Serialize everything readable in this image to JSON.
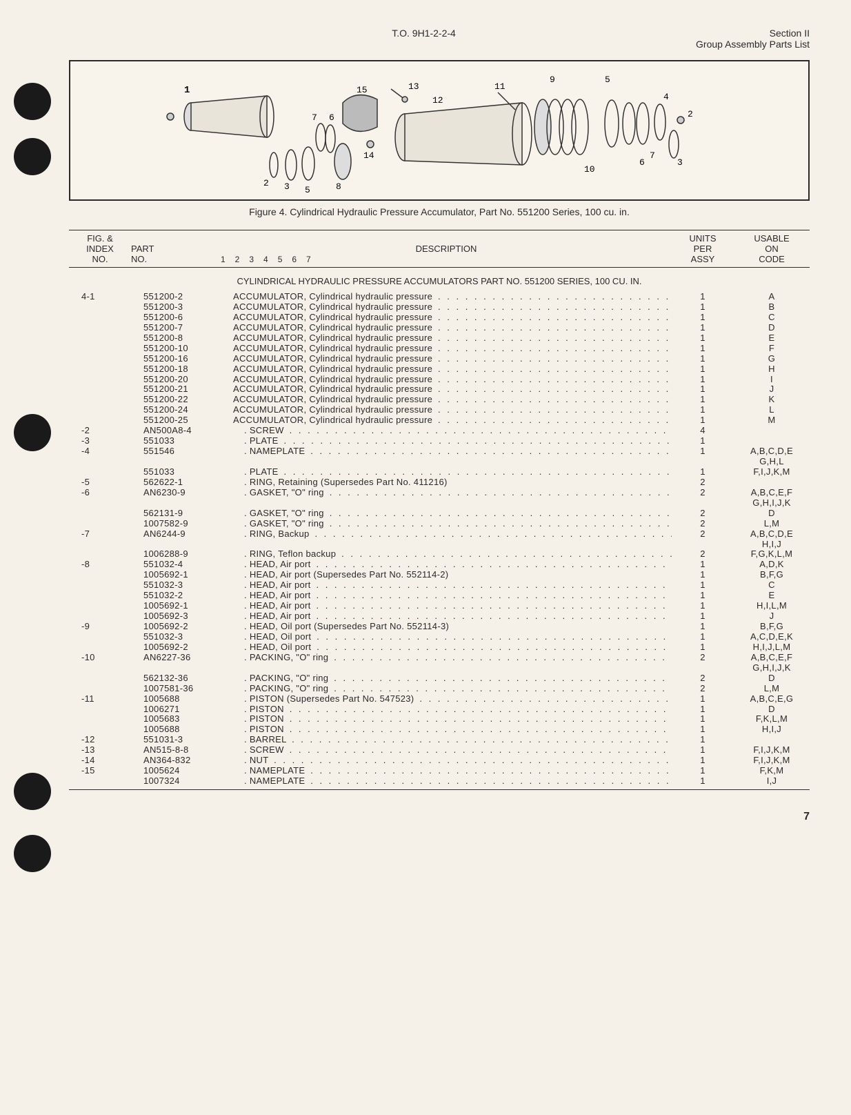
{
  "header": {
    "to_number": "T.O. 9H1-2-2-4",
    "section": "Section II",
    "section_sub": "Group Assembly Parts List"
  },
  "figure": {
    "caption": "Figure 4. Cylindrical Hydraulic Pressure Accumulator, Part No. 551200 Series, 100 cu. in.",
    "callouts": [
      "1",
      "2",
      "3",
      "4",
      "5",
      "6",
      "7",
      "8",
      "9",
      "10",
      "11",
      "12",
      "13",
      "14",
      "15"
    ]
  },
  "table_header": {
    "fig": "FIG. &",
    "fig2": "INDEX",
    "fig3": "NO.",
    "part": "PART",
    "part2": "NO.",
    "desc": "DESCRIPTION",
    "indent_nums": "1  2  3  4  5  6  7",
    "units": "UNITS",
    "units2": "PER",
    "units3": "ASSY",
    "code": "USABLE",
    "code2": "ON",
    "code3": "CODE"
  },
  "section_title": "CYLINDRICAL HYDRAULIC PRESSURE ACCUMULATORS PART NO. 551200 SERIES, 100 CU. IN.",
  "rows": [
    {
      "fig": "4-1",
      "part": "551200-2",
      "indent": 0,
      "desc": "ACCUMULATOR, Cylindrical hydraulic pressure",
      "dots": true,
      "units": "1",
      "code": "A"
    },
    {
      "fig": "",
      "part": "551200-3",
      "indent": 0,
      "desc": "ACCUMULATOR, Cylindrical hydraulic pressure",
      "dots": true,
      "units": "1",
      "code": "B"
    },
    {
      "fig": "",
      "part": "551200-6",
      "indent": 0,
      "desc": "ACCUMULATOR, Cylindrical hydraulic pressure",
      "dots": true,
      "units": "1",
      "code": "C"
    },
    {
      "fig": "",
      "part": "551200-7",
      "indent": 0,
      "desc": "ACCUMULATOR, Cylindrical hydraulic pressure",
      "dots": true,
      "units": "1",
      "code": "D"
    },
    {
      "fig": "",
      "part": "551200-8",
      "indent": 0,
      "desc": "ACCUMULATOR, Cylindrical hydraulic pressure",
      "dots": true,
      "units": "1",
      "code": "E"
    },
    {
      "fig": "",
      "part": "551200-10",
      "indent": 0,
      "desc": "ACCUMULATOR, Cylindrical hydraulic pressure",
      "dots": true,
      "units": "1",
      "code": "F"
    },
    {
      "fig": "",
      "part": "551200-16",
      "indent": 0,
      "desc": "ACCUMULATOR, Cylindrical hydraulic pressure",
      "dots": true,
      "units": "1",
      "code": "G"
    },
    {
      "fig": "",
      "part": "551200-18",
      "indent": 0,
      "desc": "ACCUMULATOR, Cylindrical hydraulic pressure",
      "dots": true,
      "units": "1",
      "code": "H"
    },
    {
      "fig": "",
      "part": "551200-20",
      "indent": 0,
      "desc": "ACCUMULATOR, Cylindrical hydraulic pressure",
      "dots": true,
      "units": "1",
      "code": "I"
    },
    {
      "fig": "",
      "part": "551200-21",
      "indent": 0,
      "desc": "ACCUMULATOR, Cylindrical hydraulic pressure",
      "dots": true,
      "units": "1",
      "code": "J"
    },
    {
      "fig": "",
      "part": "551200-22",
      "indent": 0,
      "desc": "ACCUMULATOR, Cylindrical hydraulic pressure",
      "dots": true,
      "units": "1",
      "code": "K"
    },
    {
      "fig": "",
      "part": "551200-24",
      "indent": 0,
      "desc": "ACCUMULATOR, Cylindrical hydraulic pressure",
      "dots": true,
      "units": "1",
      "code": "L"
    },
    {
      "fig": "",
      "part": "551200-25",
      "indent": 0,
      "desc": "ACCUMULATOR, Cylindrical hydraulic pressure",
      "dots": true,
      "units": "1",
      "code": "M"
    },
    {
      "fig": "-2",
      "part": "AN500A8-4",
      "indent": 1,
      "desc": "SCREW",
      "dots": true,
      "units": "4",
      "code": ""
    },
    {
      "fig": "-3",
      "part": "551033",
      "indent": 1,
      "desc": "PLATE",
      "dots": true,
      "units": "1",
      "code": ""
    },
    {
      "fig": "-4",
      "part": "551546",
      "indent": 1,
      "desc": "NAMEPLATE",
      "dots": true,
      "units": "1",
      "code": "A,B,C,D,E"
    },
    {
      "fig": "",
      "part": "",
      "indent": 1,
      "desc": "",
      "dots": false,
      "units": "",
      "code": "G,H,L"
    },
    {
      "fig": "",
      "part": "551033",
      "indent": 1,
      "desc": "PLATE",
      "dots": true,
      "units": "1",
      "code": "F,I,J,K,M"
    },
    {
      "fig": "-5",
      "part": "562622-1",
      "indent": 1,
      "desc": "RING, Retaining (Supersedes Part No. 411216)",
      "dots": false,
      "units": "2",
      "code": ""
    },
    {
      "fig": "-6",
      "part": "AN6230-9",
      "indent": 1,
      "desc": "GASKET, \"O\" ring",
      "dots": true,
      "units": "2",
      "code": "A,B,C,E,F"
    },
    {
      "fig": "",
      "part": "",
      "indent": 1,
      "desc": "",
      "dots": false,
      "units": "",
      "code": "G,H,I,J,K"
    },
    {
      "fig": "",
      "part": "562131-9",
      "indent": 1,
      "desc": "GASKET, \"O\" ring",
      "dots": true,
      "units": "2",
      "code": "D"
    },
    {
      "fig": "",
      "part": "1007582-9",
      "indent": 1,
      "desc": "GASKET, \"O\" ring",
      "dots": true,
      "units": "2",
      "code": "L,M"
    },
    {
      "fig": "-7",
      "part": "AN6244-9",
      "indent": 1,
      "desc": "RING, Backup",
      "dots": true,
      "units": "2",
      "code": "A,B,C,D,E"
    },
    {
      "fig": "",
      "part": "",
      "indent": 1,
      "desc": "",
      "dots": false,
      "units": "",
      "code": "H,I,J"
    },
    {
      "fig": "",
      "part": "1006288-9",
      "indent": 1,
      "desc": "RING, Teflon backup",
      "dots": true,
      "units": "2",
      "code": "F,G,K,L,M"
    },
    {
      "fig": "-8",
      "part": "551032-4",
      "indent": 1,
      "desc": "HEAD, Air port",
      "dots": true,
      "units": "1",
      "code": "A,D,K"
    },
    {
      "fig": "",
      "part": "1005692-1",
      "indent": 1,
      "desc": "HEAD, Air port (Supersedes Part No. 552114-2)",
      "dots": false,
      "units": "1",
      "code": "B,F,G"
    },
    {
      "fig": "",
      "part": "551032-3",
      "indent": 1,
      "desc": "HEAD, Air port",
      "dots": true,
      "units": "1",
      "code": "C"
    },
    {
      "fig": "",
      "part": "551032-2",
      "indent": 1,
      "desc": "HEAD, Air port",
      "dots": true,
      "units": "1",
      "code": "E"
    },
    {
      "fig": "",
      "part": "1005692-1",
      "indent": 1,
      "desc": "HEAD, Air port",
      "dots": true,
      "units": "1",
      "code": "H,I,L,M"
    },
    {
      "fig": "",
      "part": "1005692-3",
      "indent": 1,
      "desc": "HEAD, Air port",
      "dots": true,
      "units": "1",
      "code": "J"
    },
    {
      "fig": "-9",
      "part": "1005692-2",
      "indent": 1,
      "desc": "HEAD, Oil port (Supersedes Part No. 552114-3)",
      "dots": false,
      "units": "1",
      "code": "B,F,G"
    },
    {
      "fig": "",
      "part": "551032-3",
      "indent": 1,
      "desc": "HEAD, Oil port",
      "dots": true,
      "units": "1",
      "code": "A,C,D,E,K"
    },
    {
      "fig": "",
      "part": "1005692-2",
      "indent": 1,
      "desc": "HEAD, Oil port",
      "dots": true,
      "units": "1",
      "code": "H,I,J,L,M"
    },
    {
      "fig": "-10",
      "part": "AN6227-36",
      "indent": 1,
      "desc": "PACKING, \"O\" ring",
      "dots": true,
      "units": "2",
      "code": "A,B,C,E,F"
    },
    {
      "fig": "",
      "part": "",
      "indent": 1,
      "desc": "",
      "dots": false,
      "units": "",
      "code": "G,H,I,J,K"
    },
    {
      "fig": "",
      "part": "562132-36",
      "indent": 1,
      "desc": "PACKING, \"O\" ring",
      "dots": true,
      "units": "2",
      "code": "D"
    },
    {
      "fig": "",
      "part": "1007581-36",
      "indent": 1,
      "desc": "PACKING, \"O\" ring",
      "dots": true,
      "units": "2",
      "code": "L,M"
    },
    {
      "fig": "-11",
      "part": "1005688",
      "indent": 1,
      "desc": "PISTON (Supersedes Part No. 547523)",
      "dots": true,
      "units": "1",
      "code": "A,B,C,E,G"
    },
    {
      "fig": "",
      "part": "1006271",
      "indent": 1,
      "desc": "PISTON",
      "dots": true,
      "units": "1",
      "code": "D"
    },
    {
      "fig": "",
      "part": "1005683",
      "indent": 1,
      "desc": "PISTON",
      "dots": true,
      "units": "1",
      "code": "F,K,L,M"
    },
    {
      "fig": "",
      "part": "1005688",
      "indent": 1,
      "desc": "PISTON",
      "dots": true,
      "units": "1",
      "code": "H,I,J"
    },
    {
      "fig": "-12",
      "part": "551031-3",
      "indent": 1,
      "desc": "BARREL",
      "dots": true,
      "units": "1",
      "code": ""
    },
    {
      "fig": "-13",
      "part": "AN515-8-8",
      "indent": 1,
      "desc": "SCREW",
      "dots": true,
      "units": "1",
      "code": "F,I,J,K,M"
    },
    {
      "fig": "-14",
      "part": "AN364-832",
      "indent": 1,
      "desc": "NUT",
      "dots": true,
      "units": "1",
      "code": "F,I,J,K,M"
    },
    {
      "fig": "-15",
      "part": "1005624",
      "indent": 1,
      "desc": "NAMEPLATE",
      "dots": true,
      "units": "1",
      "code": "F,K,M"
    },
    {
      "fig": "",
      "part": "1007324",
      "indent": 1,
      "desc": "NAMEPLATE",
      "dots": true,
      "units": "1",
      "code": "I,J"
    }
  ],
  "page_number": "7"
}
